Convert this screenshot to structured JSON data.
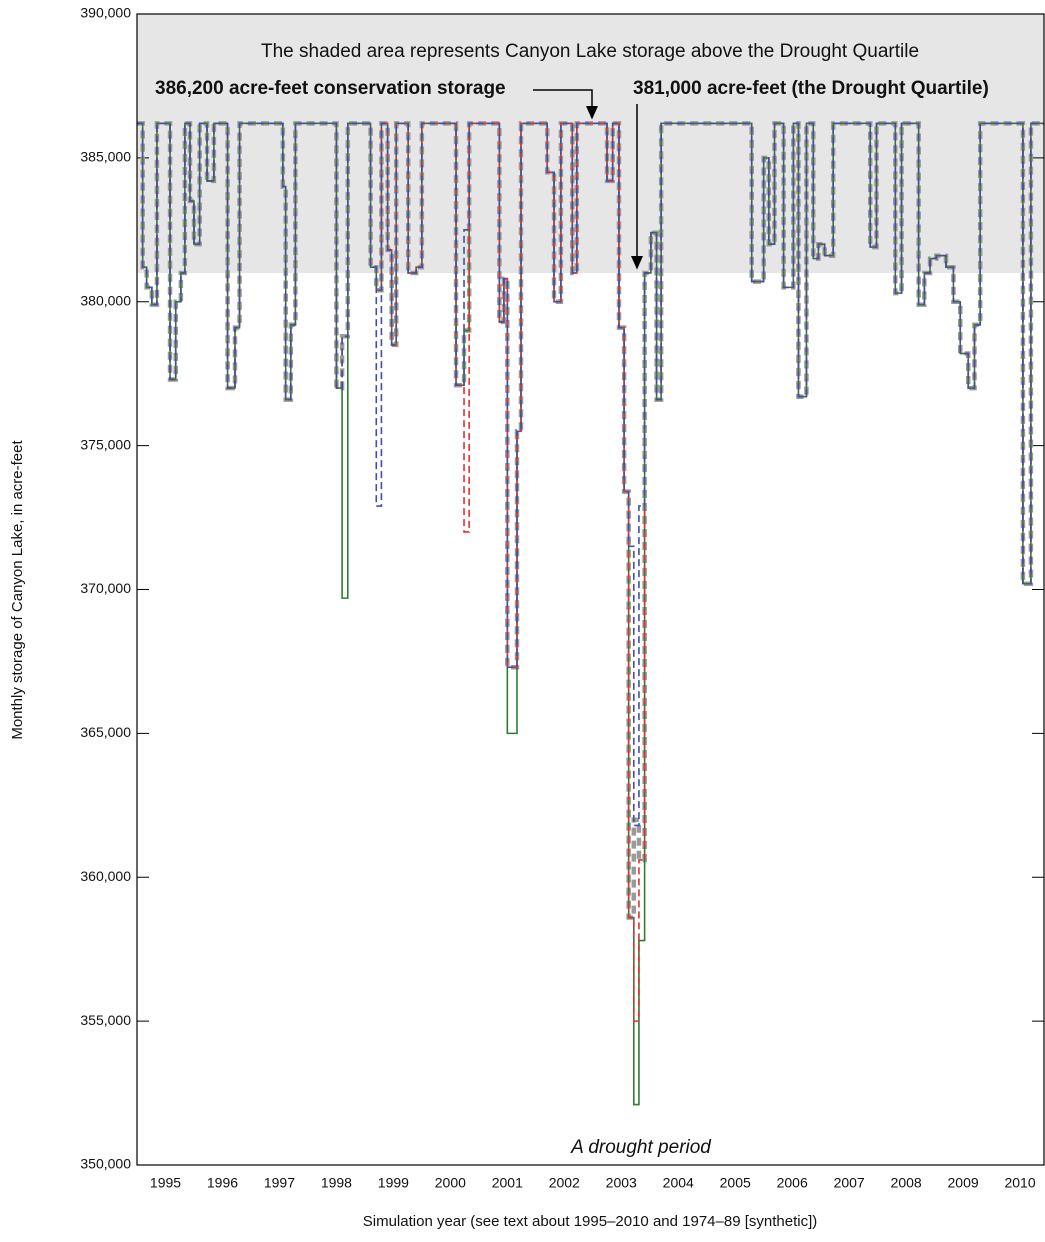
{
  "chart_data": {
    "type": "step-line",
    "y_label": "Monthly storage of Canyon Lake, in acre-feet",
    "x_label": "Simulation year (see text about 1995–2010 and 1974–89 [synthetic])",
    "annotations": [
      "The shaded area represents Canyon Lake storage above the Drought Quartile",
      "386,200 acre-feet conservation storage",
      "381,000 acre-feet (the Drought Quartile)",
      "A drought period"
    ],
    "shade_from": 381000,
    "xlim": [
      1995,
      2010.92
    ],
    "ylim": [
      350000,
      390000
    ],
    "yticks": [
      {
        "value": 350000,
        "label": "350,000"
      },
      {
        "value": 355000,
        "label": "355,000"
      },
      {
        "value": 360000,
        "label": "360,000"
      },
      {
        "value": 365000,
        "label": "365,000"
      },
      {
        "value": 370000,
        "label": "370,000"
      },
      {
        "value": 375000,
        "label": "375,000"
      },
      {
        "value": 380000,
        "label": "380,000"
      },
      {
        "value": 385000,
        "label": "385,000"
      },
      {
        "value": 390000,
        "label": "390,000"
      }
    ],
    "xticks": [
      {
        "value": 1995.5,
        "label": "1995"
      },
      {
        "value": 1996.5,
        "label": "1996"
      },
      {
        "value": 1997.5,
        "label": "1997"
      },
      {
        "value": 1998.5,
        "label": "1998"
      },
      {
        "value": 1999.5,
        "label": "1999"
      },
      {
        "value": 2000.5,
        "label": "2000"
      },
      {
        "value": 2001.5,
        "label": "2001"
      },
      {
        "value": 2002.5,
        "label": "2002"
      },
      {
        "value": 2003.5,
        "label": "2003"
      },
      {
        "value": 2004.5,
        "label": "2004"
      },
      {
        "value": 2005.5,
        "label": "2005"
      },
      {
        "value": 2006.5,
        "label": "2006"
      },
      {
        "value": 2007.5,
        "label": "2007"
      },
      {
        "value": 2008.5,
        "label": "2008"
      },
      {
        "value": 2009.5,
        "label": "2009"
      },
      {
        "value": 2010.5,
        "label": "2010"
      }
    ],
    "x": [
      1995.0,
      1995.1,
      1995.17,
      1995.26,
      1995.35,
      1995.58,
      1995.68,
      1995.77,
      1995.84,
      1995.93,
      1996.0,
      1996.1,
      1996.23,
      1996.35,
      1996.59,
      1996.72,
      1996.8,
      1997.56,
      1997.61,
      1997.7,
      1997.78,
      1998.5,
      1998.6,
      1998.7,
      1999.1,
      1999.2,
      1999.29,
      1999.4,
      1999.47,
      1999.55,
      1999.76,
      1999.9,
      2000.0,
      2000.6,
      2000.74,
      2000.83,
      2001.36,
      2001.44,
      2001.5,
      2001.67,
      2001.74,
      2002.2,
      2002.32,
      2002.44,
      2002.64,
      2002.72,
      2003.25,
      2003.35,
      2003.46,
      2003.55,
      2003.63,
      2003.72,
      2003.81,
      2003.91,
      2004.02,
      2004.12,
      2004.2,
      2005.79,
      2006.0,
      2006.09,
      2006.19,
      2006.35,
      2006.52,
      2006.61,
      2006.75,
      2006.87,
      2006.96,
      2007.07,
      2007.22,
      2007.87,
      2007.98,
      2008.31,
      2008.42,
      2008.72,
      2008.82,
      2008.92,
      2009.03,
      2009.2,
      2009.33,
      2009.45,
      2009.59,
      2009.7,
      2009.8,
      2010.55,
      2010.69,
      2010.92
    ],
    "series": [
      {
        "color": "#9a9a9a",
        "values": [
          386200,
          381200,
          380500,
          379900,
          386200,
          377300,
          380000,
          381000,
          386200,
          383500,
          382000,
          386200,
          384200,
          386200,
          377000,
          379100,
          386200,
          384000,
          376600,
          379200,
          386200,
          377000,
          378800,
          386200,
          381200,
          380400,
          386200,
          381800,
          378500,
          386200,
          381000,
          381200,
          386200,
          377100,
          379000,
          386200,
          379300,
          380800,
          367300,
          375500,
          386200,
          384500,
          380000,
          386200,
          381000,
          386200,
          384200,
          386200,
          379100,
          373400,
          358600,
          362000,
          360600,
          381000,
          382400,
          376600,
          386200,
          380700,
          385000,
          382000,
          386200,
          380500,
          386200,
          376700,
          386200,
          381500,
          382000,
          381600,
          386200,
          381900,
          386200,
          380300,
          386200,
          379900,
          381000,
          381500,
          381600,
          381200,
          380000,
          378200,
          377000,
          379200,
          386200,
          370200,
          386200,
          386200
        ]
      },
      {
        "color": "#2e7d32",
        "values": [
          386200,
          381200,
          380500,
          379900,
          386200,
          377300,
          380000,
          381000,
          386200,
          383500,
          382000,
          386200,
          384200,
          386200,
          377000,
          379100,
          386200,
          384000,
          376600,
          379200,
          386200,
          377000,
          369700,
          386200,
          381200,
          380400,
          386200,
          381800,
          378500,
          386200,
          381000,
          381200,
          386200,
          377100,
          379000,
          386200,
          379300,
          380800,
          365000,
          375500,
          386200,
          384500,
          380000,
          386200,
          381000,
          386200,
          384200,
          386200,
          379100,
          373400,
          358600,
          352100,
          357800,
          381000,
          382400,
          376600,
          386200,
          380700,
          385000,
          382000,
          386200,
          380500,
          386200,
          376700,
          386200,
          381500,
          382000,
          381600,
          386200,
          381900,
          386200,
          380300,
          386200,
          379900,
          381000,
          381500,
          381600,
          381200,
          380000,
          378200,
          377000,
          379200,
          386200,
          370200,
          386200,
          386200
        ]
      },
      {
        "color": "#e03030",
        "values": [
          386200,
          381200,
          380500,
          379900,
          386200,
          377300,
          380000,
          381000,
          386200,
          383500,
          382000,
          386200,
          384200,
          386200,
          377000,
          379100,
          386200,
          384000,
          376600,
          379200,
          386200,
          377000,
          378800,
          386200,
          381200,
          380400,
          386200,
          381800,
          378500,
          386200,
          381000,
          381200,
          386200,
          377100,
          372000,
          386200,
          379300,
          380800,
          367300,
          375500,
          386200,
          384500,
          380000,
          386200,
          381000,
          386200,
          384200,
          386200,
          379100,
          373400,
          358600,
          355000,
          360600,
          381000,
          382400,
          376600,
          386200,
          380700,
          385000,
          382000,
          386200,
          380500,
          386200,
          376700,
          386200,
          381500,
          382000,
          381600,
          386200,
          381900,
          386200,
          380300,
          386200,
          379900,
          381000,
          381500,
          381600,
          381200,
          380000,
          378200,
          377000,
          379200,
          386200,
          370200,
          386200,
          386200
        ]
      },
      {
        "color": "#3f4fa8",
        "values": [
          386200,
          381200,
          380500,
          379900,
          386200,
          377300,
          380000,
          381000,
          386200,
          383500,
          382000,
          386200,
          384200,
          386200,
          377000,
          379100,
          386200,
          384000,
          376600,
          379200,
          386200,
          377000,
          378800,
          386200,
          381200,
          372900,
          386200,
          381800,
          378500,
          386200,
          381000,
          381200,
          386200,
          377100,
          382500,
          386200,
          379300,
          380800,
          367300,
          375500,
          386200,
          384500,
          380000,
          386200,
          381000,
          386200,
          384200,
          386200,
          379100,
          373400,
          371500,
          361800,
          372900,
          381000,
          382400,
          376600,
          386200,
          380700,
          385000,
          382000,
          386200,
          380500,
          386200,
          376700,
          386200,
          381500,
          382000,
          381600,
          386200,
          381900,
          386200,
          380300,
          386200,
          379900,
          381000,
          381500,
          381600,
          381200,
          380000,
          378200,
          377000,
          379200,
          386200,
          370200,
          386200,
          386200
        ]
      }
    ]
  }
}
